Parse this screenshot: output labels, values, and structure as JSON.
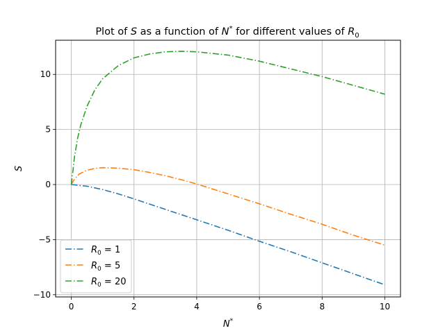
{
  "chart_data": {
    "type": "line",
    "title": {
      "pre": "Plot of ",
      "s": "S",
      "mid": " as a function of ",
      "n": "N",
      "n_sup": "*",
      "post": " for different values of ",
      "r": "R",
      "r_sub": "0"
    },
    "xlabel": {
      "base": "N",
      "sup": "*"
    },
    "ylabel": "S",
    "xlim": [
      -0.5,
      10.5
    ],
    "ylim": [
      -10.2,
      13.1
    ],
    "xticks": [
      0,
      2,
      4,
      6,
      8,
      10
    ],
    "yticks": [
      -10,
      -5,
      0,
      5,
      10
    ],
    "xtick_labels": [
      "0",
      "2",
      "4",
      "6",
      "8",
      "10"
    ],
    "ytick_labels": [
      "−10",
      "−5",
      "0",
      "5",
      "10"
    ],
    "grid": true,
    "legend_position": "lower-left",
    "series": [
      {
        "name": "R0 = 1",
        "legend": {
          "base": "R",
          "sub": "0",
          "rest": " = 1"
        },
        "color": "#1f77b4",
        "x": [
          0,
          0.5,
          1,
          1.5,
          2,
          3,
          4,
          5,
          6,
          7,
          8,
          9,
          10
        ],
        "y": [
          0,
          -0.15,
          -0.45,
          -0.85,
          -1.3,
          -2.25,
          -3.2,
          -4.15,
          -5.15,
          -6.1,
          -7.1,
          -8.1,
          -9.1
        ]
      },
      {
        "name": "R0 = 5",
        "legend": {
          "base": "R",
          "sub": "0",
          "rest": " = 5"
        },
        "color": "#ff7f0e",
        "x": [
          0,
          0.1,
          0.25,
          0.5,
          0.75,
          1,
          1.25,
          1.5,
          2,
          2.5,
          3,
          3.5,
          4,
          5,
          6,
          7,
          8,
          9,
          10
        ],
        "y": [
          0,
          0.5,
          0.95,
          1.3,
          1.47,
          1.53,
          1.52,
          1.48,
          1.35,
          1.1,
          0.8,
          0.45,
          0.05,
          -0.85,
          -1.75,
          -2.7,
          -3.6,
          -4.6,
          -5.5
        ]
      },
      {
        "name": "R0 = 20",
        "legend": {
          "base": "R",
          "sub": "0",
          "rest": " = 20"
        },
        "color": "#2ca02c",
        "x": [
          0,
          0.05,
          0.1,
          0.2,
          0.3,
          0.5,
          0.75,
          1,
          1.5,
          2,
          2.5,
          3,
          3.5,
          4,
          5,
          6,
          7,
          8,
          9,
          10
        ],
        "y": [
          0,
          1.2,
          2.5,
          4.2,
          5.4,
          7.1,
          8.6,
          9.6,
          10.8,
          11.5,
          11.85,
          12.05,
          12.1,
          12.05,
          11.75,
          11.2,
          10.5,
          9.8,
          9.0,
          8.2
        ]
      }
    ]
  }
}
